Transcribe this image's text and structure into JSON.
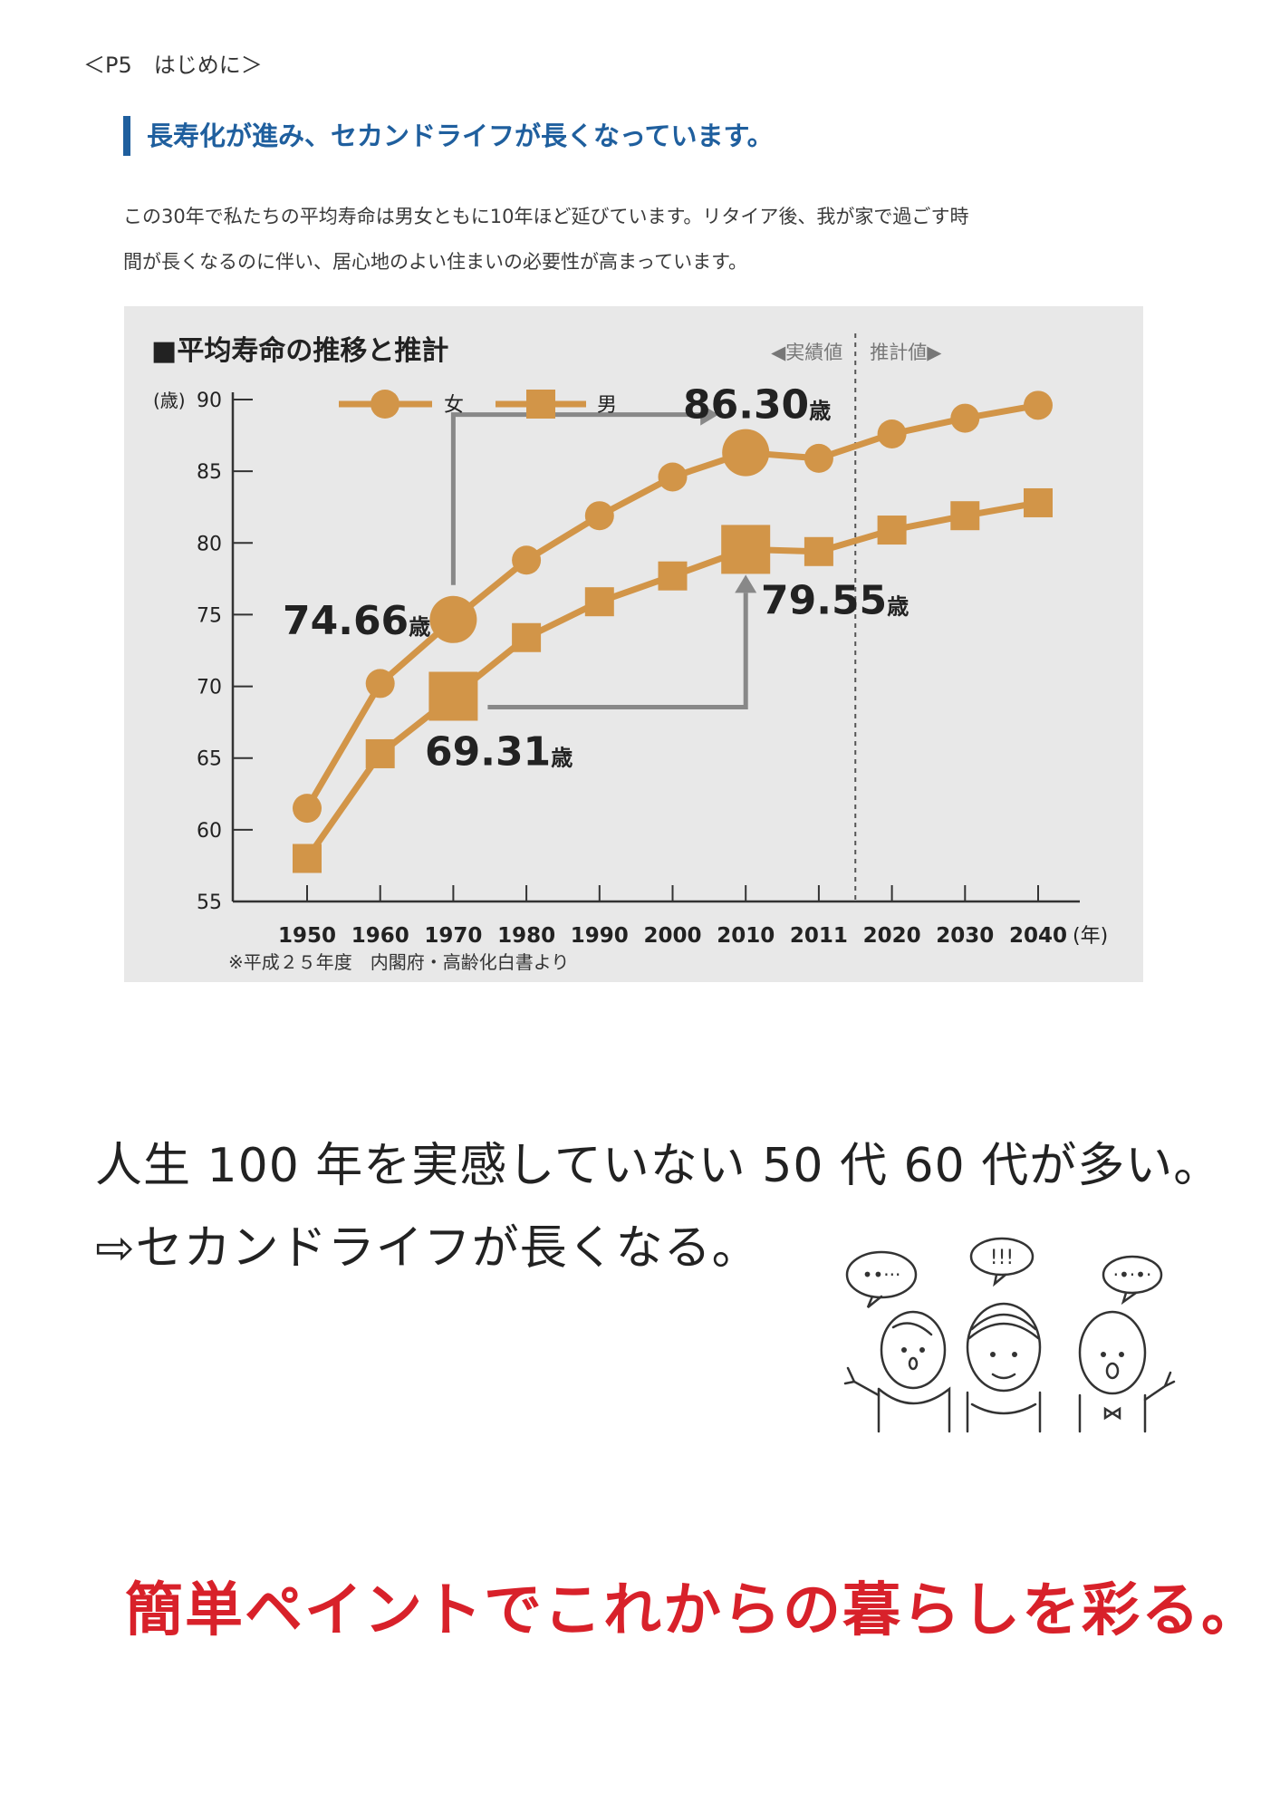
{
  "page_label": "＜P5　はじめに＞",
  "heading": "長寿化が進み、セカンドライフが長くなっています。",
  "intro": {
    "line1": "この30年で私たちの平均寿命は男女ともに10年ほど延びています。リタイア後、我が家で過ごす時",
    "line2": "間が長くなるのに伴い、居心地のよい住まいの必要性が高まっています。"
  },
  "chart_data": {
    "type": "line",
    "title": "■平均寿命の推移と推計",
    "ylabel": "(歳)",
    "xlabel": "(年)",
    "categories": [
      "1950",
      "1960",
      "1970",
      "1980",
      "1990",
      "2000",
      "2010",
      "2011",
      "2020",
      "2030",
      "2040"
    ],
    "ylim": [
      55,
      90
    ],
    "yticks": [
      55,
      60,
      65,
      70,
      75,
      80,
      85,
      90
    ],
    "series": [
      {
        "name": "女",
        "marker": "circle",
        "values": [
          61.5,
          70.2,
          74.66,
          78.8,
          81.9,
          84.6,
          86.3,
          85.9,
          87.6,
          88.7,
          89.6
        ]
      },
      {
        "name": "男",
        "marker": "square",
        "values": [
          58.0,
          65.3,
          69.31,
          73.4,
          75.9,
          77.7,
          79.55,
          79.4,
          80.9,
          81.9,
          82.8
        ]
      }
    ],
    "annotations": [
      {
        "text": "74.66",
        "unit": "歳"
      },
      {
        "text": "86.30",
        "unit": "歳"
      },
      {
        "text": "69.31",
        "unit": "歳"
      },
      {
        "text": "79.55",
        "unit": "歳"
      }
    ],
    "region_labels": {
      "actual": "◀実績値",
      "projected": "推計値▶"
    },
    "source": "※平成２５年度　内閣府・高齢化白書より",
    "color": "#d29548",
    "arrow_color": "#888888",
    "grid": false,
    "legend": "top-left"
  },
  "statement": {
    "line1": "人生 100 年を実感していない 50 代 60 代が多い。",
    "line2": "⇨セカンドライフが長くなる。"
  },
  "illustration": {
    "bubble1": "••···",
    "bubble2": "!!!",
    "bubble3": "·•·•·"
  },
  "slogan": "簡単ペイントでこれからの暮らしを彩る。"
}
